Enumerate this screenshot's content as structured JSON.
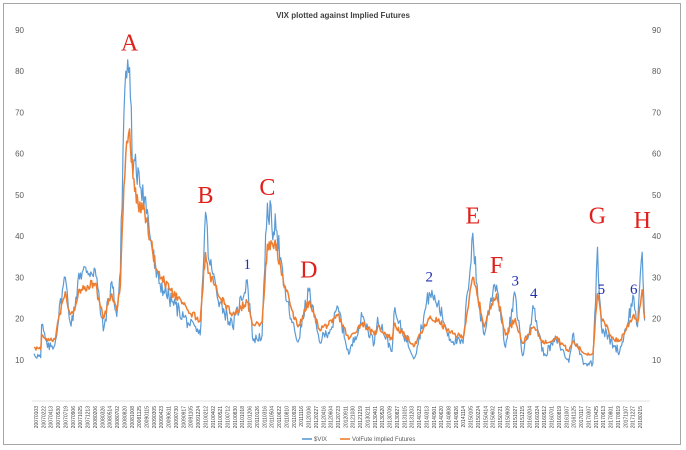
{
  "chart_data": {
    "type": "line",
    "title": "VIX plotted against Implied Futures",
    "ylim": [
      0,
      90
    ],
    "y_ticks": [
      10,
      20,
      30,
      40,
      50,
      60,
      70,
      80,
      90
    ],
    "grid": false,
    "legend_placement": "bottom",
    "x_start": "20070103",
    "x_end": "20180327",
    "x_tick_labels": [
      "20070103",
      "20070222",
      "20070413",
      "20070530",
      "20070719",
      "20070906",
      "20071025",
      "20071213",
      "20080206",
      "20080326",
      "20080514",
      "20080702",
      "20080820",
      "20081008",
      "20081125",
      "20090115",
      "20090305",
      "20090423",
      "20090611",
      "20090730",
      "20090917",
      "20091105",
      "20091224",
      "20100212",
      "20100402",
      "20100521",
      "20100712",
      "20100830",
      "20101018",
      "20101206",
      "20110126",
      "20110316",
      "20110504",
      "20110622",
      "20110810",
      "20110928",
      "20111116",
      "20120106",
      "20120227",
      "20120416",
      "20120604",
      "20120723",
      "20120911",
      "20121030",
      "20121219",
      "20130211",
      "20130401",
      "20130520",
      "20130709",
      "20130827",
      "20131015",
      "20131203",
      "20140123",
      "20140313",
      "20140501",
      "20140620",
      "20140808",
      "20140926",
      "20141114",
      "20150105",
      "20150224",
      "20150414",
      "20150602",
      "20150721",
      "20150909",
      "20151027",
      "20151215",
      "20160204",
      "20160324",
      "20160512",
      "20160701",
      "20160819",
      "20161007",
      "20161125",
      "20170117",
      "20170307",
      "20170425",
      "20170613",
      "20170801",
      "20170919",
      "20171107",
      "20171227",
      "20180215"
    ],
    "series": [
      {
        "name": "$VIX",
        "color": "#5b9bd5",
        "points": [
          [
            "2007-01-03",
            11.5
          ],
          [
            "2007-02-20",
            10.5
          ],
          [
            "2007-02-27",
            18.5
          ],
          [
            "2007-04-10",
            13.0
          ],
          [
            "2007-06-01",
            13.5
          ],
          [
            "2007-07-26",
            27.0
          ],
          [
            "2007-08-16",
            30.0
          ],
          [
            "2007-09-20",
            19.0
          ],
          [
            "2007-10-24",
            22.0
          ],
          [
            "2007-11-21",
            31.0
          ],
          [
            "2008-01-22",
            31.5
          ],
          [
            "2008-03-17",
            32.0
          ],
          [
            "2008-05-15",
            17.0
          ],
          [
            "2008-07-15",
            29.0
          ],
          [
            "2008-08-20",
            20.5
          ],
          [
            "2008-09-15",
            31.5
          ],
          [
            "2008-10-10",
            69.5
          ],
          [
            "2008-10-24",
            80.0
          ],
          [
            "2008-11-20",
            80.9
          ],
          [
            "2008-12-15",
            55.0
          ],
          [
            "2009-01-20",
            56.6
          ],
          [
            "2009-03-09",
            49.5
          ],
          [
            "2009-06-01",
            30.0
          ],
          [
            "2009-09-01",
            25.0
          ],
          [
            "2010-01-15",
            19.0
          ],
          [
            "2010-04-12",
            16.0
          ],
          [
            "2010-05-20",
            45.8
          ],
          [
            "2010-06-15",
            34.0
          ],
          [
            "2010-09-01",
            24.0
          ],
          [
            "2010-12-01",
            18.0
          ],
          [
            "2011-03-16",
            29.4
          ],
          [
            "2011-04-28",
            14.6
          ],
          [
            "2011-07-01",
            16.0
          ],
          [
            "2011-08-08",
            48.0
          ],
          [
            "2011-09-22",
            41.0
          ],
          [
            "2011-10-03",
            45.4
          ],
          [
            "2011-12-01",
            28.0
          ],
          [
            "2012-02-01",
            19.0
          ],
          [
            "2012-03-15",
            14.3
          ],
          [
            "2012-06-01",
            26.7
          ],
          [
            "2012-08-15",
            14.5
          ],
          [
            "2012-11-15",
            18.0
          ],
          [
            "2012-12-28",
            22.7
          ],
          [
            "2013-03-15",
            11.3
          ],
          [
            "2013-06-20",
            20.5
          ],
          [
            "2013-09-15",
            14.0
          ],
          [
            "2013-10-08",
            20.3
          ],
          [
            "2014-01-20",
            12.0
          ],
          [
            "2014-02-03",
            21.4
          ],
          [
            "2014-07-01",
            10.5
          ],
          [
            "2014-10-15",
            26.3
          ],
          [
            "2014-12-16",
            23.6
          ],
          [
            "2015-03-15",
            15.0
          ],
          [
            "2015-06-15",
            14.0
          ],
          [
            "2015-08-24",
            40.7
          ],
          [
            "2015-09-30",
            24.5
          ],
          [
            "2015-11-15",
            16.0
          ],
          [
            "2016-01-20",
            28.1
          ],
          [
            "2016-02-11",
            28.1
          ],
          [
            "2016-04-15",
            13.0
          ],
          [
            "2016-06-24",
            25.8
          ],
          [
            "2016-08-15",
            11.0
          ],
          [
            "2016-11-04",
            22.5
          ],
          [
            "2017-01-15",
            11.0
          ],
          [
            "2017-04-15",
            15.0
          ],
          [
            "2017-07-15",
            9.4
          ],
          [
            "2017-08-10",
            16.0
          ],
          [
            "2017-11-03",
            9.1
          ],
          [
            "2018-01-03",
            9.2
          ],
          [
            "2018-02-05",
            37.3
          ],
          [
            "2018-03-05",
            18.0
          ],
          [
            "2018-06-01",
            13.5
          ],
          [
            "2018-07-15",
            12.0
          ],
          [
            "2018-10-24",
            25.2
          ],
          [
            "2018-11-20",
            18.0
          ],
          [
            "2018-12-24",
            36.1
          ],
          [
            "2019-01-10",
            19.5
          ]
        ]
      },
      {
        "name": "VolFute Implied Futures",
        "color": "#ed7d31",
        "points": [
          [
            "2007-01-03",
            13.0
          ],
          [
            "2007-02-20",
            12.5
          ],
          [
            "2007-02-27",
            16.0
          ],
          [
            "2007-04-10",
            14.5
          ],
          [
            "2007-06-01",
            15.0
          ],
          [
            "2007-07-26",
            24.0
          ],
          [
            "2007-08-16",
            26.5
          ],
          [
            "2007-09-20",
            21.0
          ],
          [
            "2007-10-24",
            22.5
          ],
          [
            "2007-11-21",
            27.0
          ],
          [
            "2008-01-22",
            28.0
          ],
          [
            "2008-03-17",
            28.5
          ],
          [
            "2008-05-15",
            20.0
          ],
          [
            "2008-07-15",
            26.0
          ],
          [
            "2008-08-20",
            22.0
          ],
          [
            "2008-09-15",
            28.0
          ],
          [
            "2008-10-10",
            52.0
          ],
          [
            "2008-10-24",
            60.0
          ],
          [
            "2008-11-20",
            66.0
          ],
          [
            "2008-12-15",
            54.0
          ],
          [
            "2009-01-20",
            48.0
          ],
          [
            "2009-03-09",
            46.0
          ],
          [
            "2009-06-01",
            32.0
          ],
          [
            "2009-09-01",
            27.0
          ],
          [
            "2010-01-15",
            22.0
          ],
          [
            "2010-04-12",
            19.5
          ],
          [
            "2010-05-20",
            36.0
          ],
          [
            "2010-06-15",
            31.0
          ],
          [
            "2010-09-01",
            25.0
          ],
          [
            "2010-12-01",
            21.0
          ],
          [
            "2011-03-16",
            24.0
          ],
          [
            "2011-04-28",
            18.5
          ],
          [
            "2011-07-01",
            19.0
          ],
          [
            "2011-08-08",
            38.0
          ],
          [
            "2011-09-22",
            37.0
          ],
          [
            "2011-10-03",
            39.0
          ],
          [
            "2011-12-01",
            29.0
          ],
          [
            "2012-02-01",
            22.0
          ],
          [
            "2012-03-15",
            18.0
          ],
          [
            "2012-06-01",
            24.0
          ],
          [
            "2012-08-15",
            17.5
          ],
          [
            "2012-11-15",
            19.0
          ],
          [
            "2012-12-28",
            21.0
          ],
          [
            "2013-03-15",
            15.0
          ],
          [
            "2013-06-20",
            19.0
          ],
          [
            "2013-09-15",
            16.0
          ],
          [
            "2013-10-08",
            18.0
          ],
          [
            "2014-01-20",
            15.0
          ],
          [
            "2014-02-03",
            18.5
          ],
          [
            "2014-07-01",
            13.5
          ],
          [
            "2014-10-15",
            20.0
          ],
          [
            "2014-12-16",
            19.5
          ],
          [
            "2015-03-15",
            16.5
          ],
          [
            "2015-06-15",
            15.5
          ],
          [
            "2015-08-24",
            30.0
          ],
          [
            "2015-09-30",
            25.0
          ],
          [
            "2015-11-15",
            18.0
          ],
          [
            "2016-01-20",
            25.0
          ],
          [
            "2016-02-11",
            26.0
          ],
          [
            "2016-04-15",
            16.0
          ],
          [
            "2016-06-24",
            20.0
          ],
          [
            "2016-08-15",
            14.0
          ],
          [
            "2016-11-04",
            18.0
          ],
          [
            "2017-01-15",
            14.0
          ],
          [
            "2017-04-15",
            15.5
          ],
          [
            "2017-07-15",
            12.0
          ],
          [
            "2017-08-10",
            14.5
          ],
          [
            "2017-11-03",
            11.5
          ],
          [
            "2018-01-03",
            11.5
          ],
          [
            "2018-02-05",
            26.0
          ],
          [
            "2018-03-05",
            20.0
          ],
          [
            "2018-06-01",
            15.0
          ],
          [
            "2018-07-15",
            14.5
          ],
          [
            "2018-10-24",
            21.0
          ],
          [
            "2018-11-20",
            19.0
          ],
          [
            "2018-12-24",
            27.0
          ],
          [
            "2019-01-10",
            20.0
          ]
        ]
      }
    ],
    "annotations": [
      {
        "text": "A",
        "color": "#e0201b",
        "date": "2008-11-20",
        "y": 85
      },
      {
        "text": "B",
        "color": "#e0201b",
        "date": "2010-05-20",
        "y": 48
      },
      {
        "text": "1",
        "color": "#1f2fb0",
        "date": "2011-03-16",
        "y": 32
      },
      {
        "text": "C",
        "color": "#e0201b",
        "date": "2011-08-08",
        "y": 50
      },
      {
        "text": "D",
        "color": "#e0201b",
        "date": "2012-06-01",
        "y": 30
      },
      {
        "text": "2",
        "color": "#1f2fb0",
        "date": "2014-10-15",
        "y": 29
      },
      {
        "text": "E",
        "color": "#e0201b",
        "date": "2015-08-24",
        "y": 43
      },
      {
        "text": "F",
        "color": "#e0201b",
        "date": "2016-02-11",
        "y": 31
      },
      {
        "text": "3",
        "color": "#1f2fb0",
        "date": "2016-06-24",
        "y": 28
      },
      {
        "text": "4",
        "color": "#1f2fb0",
        "date": "2016-11-04",
        "y": 25
      },
      {
        "text": "G",
        "color": "#e0201b",
        "date": "2018-02-05",
        "y": 43
      },
      {
        "text": "5",
        "color": "#1f2fb0",
        "date": "2018-03-05",
        "y": 26
      },
      {
        "text": "6",
        "color": "#1f2fb0",
        "date": "2018-10-24",
        "y": 26
      },
      {
        "text": "H",
        "color": "#e0201b",
        "date": "2018-12-24",
        "y": 42
      }
    ]
  }
}
